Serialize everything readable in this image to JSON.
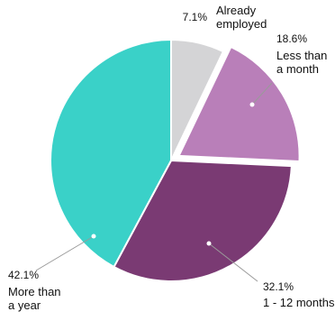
{
  "chart_data": {
    "type": "pie",
    "slices": [
      {
        "pct_label": "7.1%",
        "name_lines": [
          "Already",
          "employed"
        ],
        "value": 7.1,
        "color": "#d4d4d6",
        "exploded": false
      },
      {
        "pct_label": "18.6%",
        "name_lines": [
          "Less than",
          "a month"
        ],
        "value": 18.6,
        "color": "#b97fb9",
        "exploded": true
      },
      {
        "pct_label": "32.1%",
        "name_lines": [
          "1 - 12 months"
        ],
        "value": 32.1,
        "color": "#7a3a73",
        "exploded": false
      },
      {
        "pct_label": "42.1%",
        "name_lines": [
          "More than",
          "a year"
        ],
        "value": 42.1,
        "color": "#3ad1c8",
        "exploded": false
      }
    ],
    "start_angle_deg": 0,
    "direction": "clockwise",
    "legend": "none"
  }
}
